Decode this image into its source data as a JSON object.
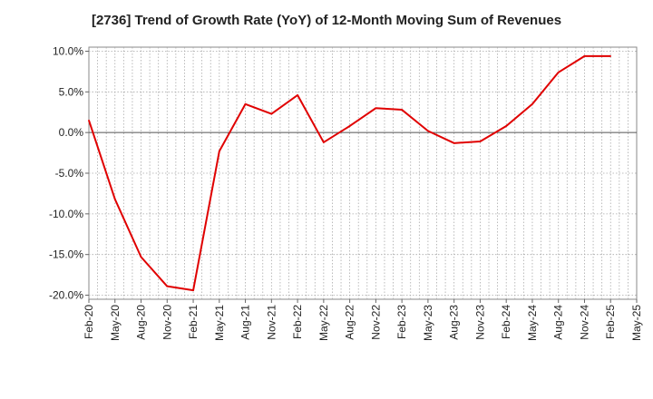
{
  "chart_data": {
    "type": "line",
    "title": "[2736]  Trend of Growth Rate (YoY) of 12-Month Moving Sum of Revenues",
    "xlabel": "",
    "ylabel": "",
    "ylim": [
      -20.5,
      10.5
    ],
    "y_ticks": [
      10,
      5,
      0,
      -5,
      -10,
      -15,
      -20
    ],
    "y_tick_labels": [
      "10.0%",
      "5.0%",
      "0.0%",
      "-5.0%",
      "-10.0%",
      "-15.0%",
      "-20.0%"
    ],
    "x_tick_labels": [
      "Feb-20",
      "May-20",
      "Aug-20",
      "Nov-20",
      "Feb-21",
      "May-21",
      "Aug-21",
      "Nov-21",
      "Feb-22",
      "May-22",
      "Aug-22",
      "Nov-22",
      "Feb-23",
      "May-23",
      "Aug-23",
      "Nov-23",
      "Feb-24",
      "May-24",
      "Aug-24",
      "Nov-24",
      "Feb-25",
      "May-25"
    ],
    "grid": true,
    "series": [
      {
        "color": "#e00000",
        "x": [
          "Feb-20",
          "May-20",
          "Aug-20",
          "Nov-20",
          "Feb-21",
          "May-21",
          "Aug-21",
          "Nov-21",
          "Feb-22",
          "May-22",
          "Aug-22",
          "Nov-22",
          "Feb-23",
          "May-23",
          "Aug-23",
          "Nov-23",
          "Feb-24",
          "May-24",
          "Aug-24",
          "Nov-24",
          "Feb-25"
        ],
        "values": [
          1.5,
          -8.2,
          -15.3,
          -18.9,
          -19.4,
          -2.3,
          3.5,
          2.3,
          4.6,
          -1.2,
          0.8,
          3.0,
          2.8,
          0.2,
          -1.3,
          -1.1,
          0.8,
          3.5,
          7.4,
          9.4,
          9.4
        ]
      }
    ]
  }
}
